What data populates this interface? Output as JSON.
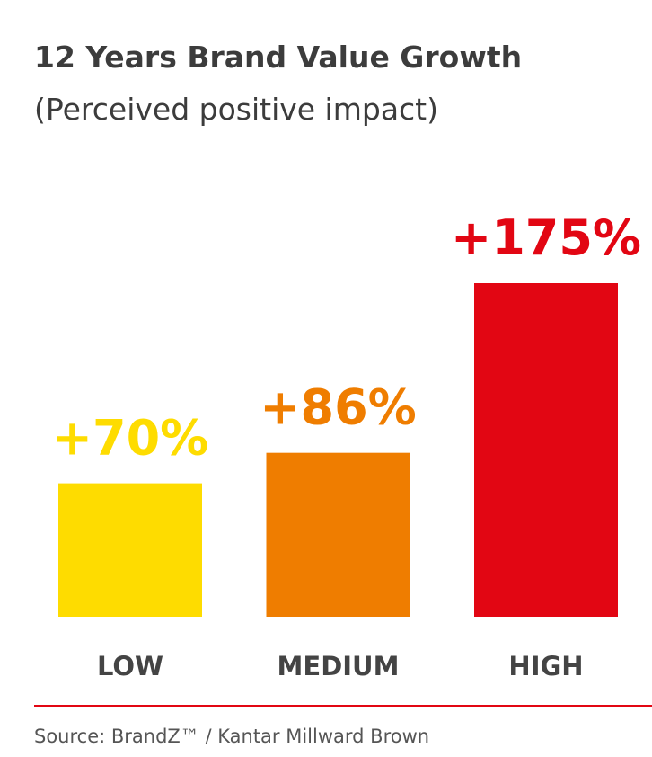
{
  "chart_data": {
    "type": "bar",
    "title": "12 Years Brand Value Growth",
    "subtitle": "(Perceived positive impact)",
    "categories": [
      "LOW",
      "MEDIUM",
      "HIGH"
    ],
    "values": [
      70,
      86,
      175
    ],
    "value_labels": [
      "+70%",
      "+86%",
      "+175%"
    ],
    "colors": [
      "#fedc00",
      "#ef7d00",
      "#e20613"
    ],
    "source": "Source: BrandZ™ / Kantar Millward Brown"
  }
}
